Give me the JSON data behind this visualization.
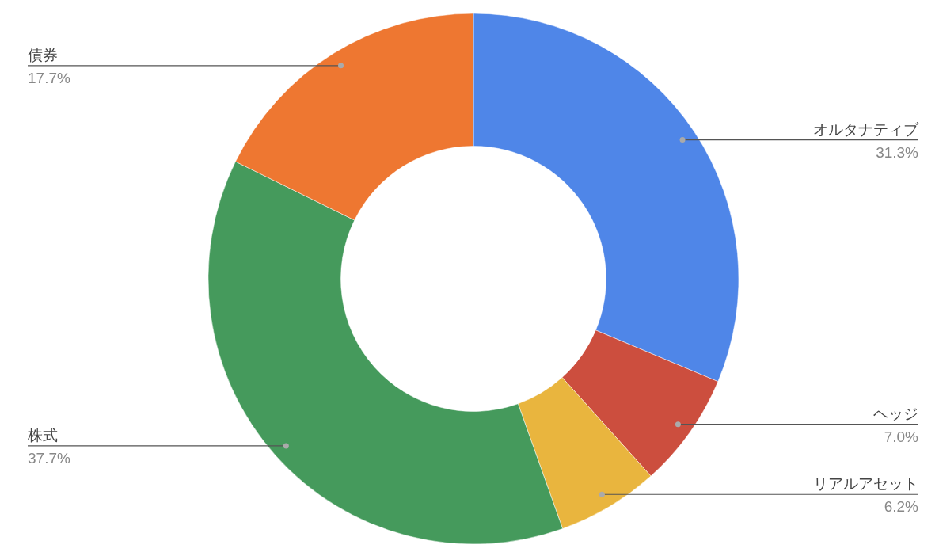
{
  "chart_data": {
    "type": "donut",
    "categories": [
      "オルタナティブ",
      "ヘッジ",
      "リアルアセット",
      "株式",
      "債券"
    ],
    "values": [
      31.3,
      7.0,
      6.2,
      37.7,
      17.7
    ],
    "colors": [
      "#4f86e8",
      "#cc4e3e",
      "#e9b53e",
      "#459a5c",
      "#ee7731"
    ],
    "value_labels": [
      "31.3%",
      "7.0%",
      "6.2%",
      "37.7%",
      "17.7%"
    ]
  }
}
